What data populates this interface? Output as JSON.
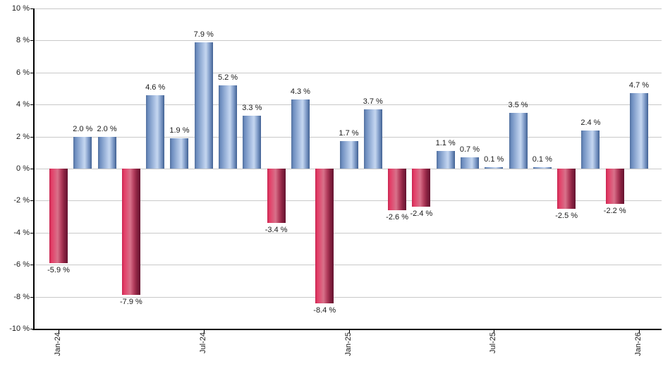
{
  "chart_data": {
    "type": "bar",
    "title": "",
    "xlabel": "",
    "ylabel": "",
    "ylim": [
      -10,
      10
    ],
    "grid": true,
    "legend": "none",
    "values": [
      -5.9,
      2.0,
      2.0,
      -7.9,
      4.6,
      1.9,
      7.9,
      5.2,
      3.3,
      -3.4,
      4.3,
      -8.4,
      1.7,
      3.7,
      -2.6,
      -2.4,
      1.1,
      0.7,
      0.1,
      3.5,
      0.1,
      -2.5,
      2.4,
      -2.2,
      4.7
    ],
    "bar_labels": [
      "-5.9 %",
      "2.0 %",
      "2.0 %",
      "-7.9 %",
      "4.6 %",
      "1.9 %",
      "7.9 %",
      "5.2 %",
      "3.3 %",
      "-3.4 %",
      "4.3 %",
      "-8.4 %",
      "1.7 %",
      "3.7 %",
      "-2.6 %",
      "-2.4 %",
      "1.1 %",
      "0.7 %",
      "0.1 %",
      "3.5 %",
      "0.1 %",
      "-2.5 %",
      "2.4 %",
      "-2.2 %",
      "4.7 %"
    ],
    "x_ticks": [
      {
        "index": 0,
        "label": "Jan-24"
      },
      {
        "index": 6,
        "label": "Jul-24"
      },
      {
        "index": 12,
        "label": "Jan-25"
      },
      {
        "index": 18,
        "label": "Jul-25"
      },
      {
        "index": 24,
        "label": "Jan-26"
      }
    ],
    "y_ticks": [
      {
        "value": 10,
        "label": "10 %"
      },
      {
        "value": 8,
        "label": "8 %"
      },
      {
        "value": 6,
        "label": "6 %"
      },
      {
        "value": 4,
        "label": "4 %"
      },
      {
        "value": 2,
        "label": "2 %"
      },
      {
        "value": 0,
        "label": "0 %"
      },
      {
        "value": -2,
        "label": "-2 %"
      },
      {
        "value": -4,
        "label": "-4 %"
      },
      {
        "value": -6,
        "label": "-6 %"
      },
      {
        "value": -8,
        "label": "-8 %"
      },
      {
        "value": -10,
        "label": "-10 %"
      }
    ],
    "colors": {
      "positive_bar_gradient": [
        "#51709f 0%",
        "#6f8fc0 12%",
        "#b9cdeb 54%",
        "#c4d6ef 62%",
        "#7f9bc8 82%",
        "#50709f 96%",
        "#3b5991 100%"
      ],
      "negative_bar_gradient": [
        "#c72550 0%",
        "#e33e67 12%",
        "#d8718a 45%",
        "#b23c5c 65%",
        "#8c2342 80%",
        "#641330 100%"
      ],
      "positive_base": "#7d9fd0",
      "negative_base": "#cc3a61",
      "grid": "#c9c9c9",
      "axis": "#000000",
      "text": "#1a1a1a"
    }
  }
}
